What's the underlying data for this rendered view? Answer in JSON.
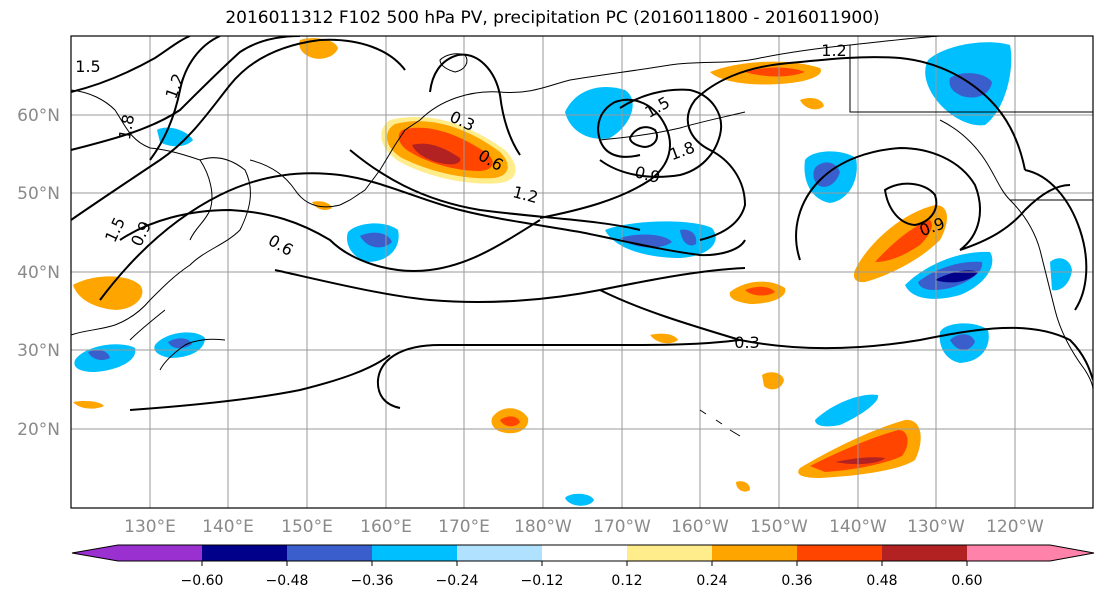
{
  "title": "2016011312 F102 500 hPa PV, precipitation PC (2016011800 - 2016011900)",
  "map": {
    "lat_labels": [
      "60°N",
      "50°N",
      "40°N",
      "30°N",
      "20°N"
    ],
    "lon_labels": [
      "130°E",
      "140°E",
      "150°E",
      "160°E",
      "170°E",
      "180°W",
      "170°W",
      "160°W",
      "150°W",
      "140°W",
      "130°W",
      "120°W"
    ],
    "contour_labels": [
      "1.5",
      "1.2",
      "1.8",
      "1.5",
      "0.9",
      "0.6",
      "0.3",
      "0.6",
      "1.2",
      "1.5",
      "1.8",
      "0.9",
      "1.2",
      "0.9",
      "0.3"
    ]
  },
  "colorbar": {
    "colors": [
      "#9b30d0",
      "#00008b",
      "#3a5fcd",
      "#00bfff",
      "#b0e2ff",
      "#ffffff",
      "#ffec8b",
      "#ffa500",
      "#ff4500",
      "#b22222",
      "#ff82ab"
    ],
    "tick_labels": [
      "−0.60",
      "−0.48",
      "−0.36",
      "−0.24",
      "−0.12",
      "0.12",
      "0.24",
      "0.36",
      "0.48",
      "0.60"
    ]
  }
}
